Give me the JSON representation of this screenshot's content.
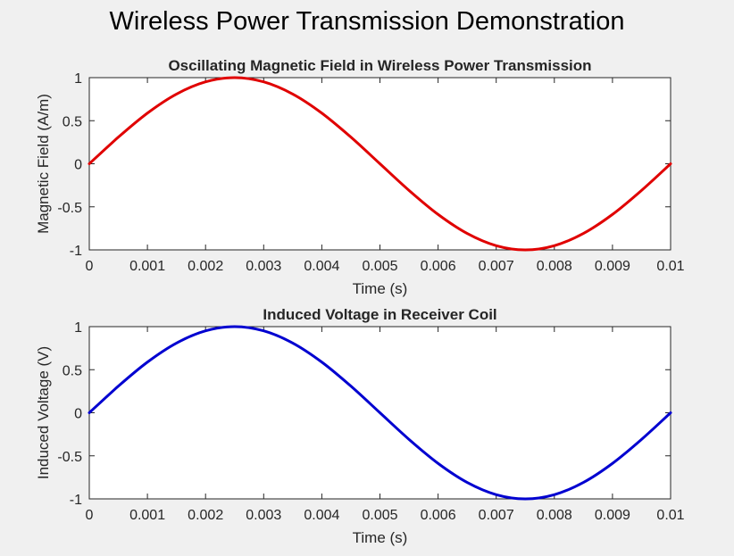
{
  "figure": {
    "suptitle": "Wireless Power Transmission Demonstration",
    "background": "#f0f0f0"
  },
  "chart_data": [
    {
      "type": "line",
      "title": "Oscillating Magnetic Field in Wireless Power Transmission",
      "xlabel": "Time (s)",
      "ylabel": "Magnetic Field (A/m)",
      "xlim": [
        0,
        0.01
      ],
      "ylim": [
        -1,
        1
      ],
      "xticks": [
        0,
        0.001,
        0.002,
        0.003,
        0.004,
        0.005,
        0.006,
        0.007,
        0.008,
        0.009,
        0.01
      ],
      "xtick_labels": [
        "0",
        "0.001",
        "0.002",
        "0.003",
        "0.004",
        "0.005",
        "0.006",
        "0.007",
        "0.008",
        "0.009",
        "0.01"
      ],
      "yticks": [
        -1,
        -0.5,
        0,
        0.5,
        1
      ],
      "ytick_labels": [
        "-1",
        "-0.5",
        "0",
        "0.5",
        "1"
      ],
      "grid": false,
      "series": [
        {
          "color": "#e00000",
          "x": [
            0,
            0.0005,
            0.001,
            0.0015,
            0.002,
            0.0025,
            0.003,
            0.0035,
            0.004,
            0.0045,
            0.005,
            0.0055,
            0.006,
            0.0065,
            0.007,
            0.0075,
            0.008,
            0.0085,
            0.009,
            0.0095,
            0.01
          ],
          "y": [
            0,
            0.309,
            0.588,
            0.809,
            0.951,
            1,
            0.951,
            0.809,
            0.588,
            0.309,
            0,
            -0.309,
            -0.588,
            -0.809,
            -0.951,
            -1,
            -0.951,
            -0.809,
            -0.588,
            -0.309,
            0
          ]
        }
      ]
    },
    {
      "type": "line",
      "title": "Induced Voltage in Receiver Coil",
      "xlabel": "Time (s)",
      "ylabel": "Induced Voltage (V)",
      "xlim": [
        0,
        0.01
      ],
      "ylim": [
        -1,
        1
      ],
      "xticks": [
        0,
        0.001,
        0.002,
        0.003,
        0.004,
        0.005,
        0.006,
        0.007,
        0.008,
        0.009,
        0.01
      ],
      "xtick_labels": [
        "0",
        "0.001",
        "0.002",
        "0.003",
        "0.004",
        "0.005",
        "0.006",
        "0.007",
        "0.008",
        "0.009",
        "0.01"
      ],
      "yticks": [
        -1,
        -0.5,
        0,
        0.5,
        1
      ],
      "ytick_labels": [
        "-1",
        "-0.5",
        "0",
        "0.5",
        "1"
      ],
      "grid": false,
      "series": [
        {
          "color": "#0000d0",
          "x": [
            0,
            0.0005,
            0.001,
            0.0015,
            0.002,
            0.0025,
            0.003,
            0.0035,
            0.004,
            0.0045,
            0.005,
            0.0055,
            0.006,
            0.0065,
            0.007,
            0.0075,
            0.008,
            0.0085,
            0.009,
            0.0095,
            0.01
          ],
          "y": [
            0,
            0.309,
            0.588,
            0.809,
            0.951,
            1,
            0.951,
            0.809,
            0.588,
            0.309,
            0,
            -0.309,
            -0.588,
            -0.809,
            -0.951,
            -1,
            -0.951,
            -0.809,
            -0.588,
            -0.309,
            0
          ]
        }
      ]
    }
  ]
}
